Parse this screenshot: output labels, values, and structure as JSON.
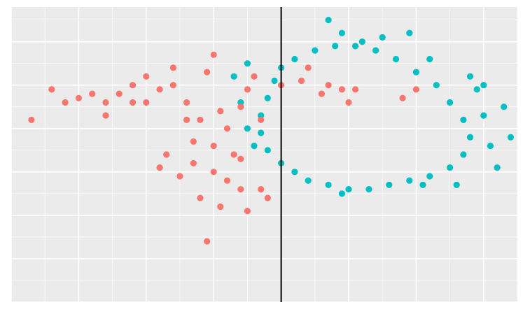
{
  "chart_data": {
    "type": "scatter",
    "title": "",
    "xlabel": "",
    "ylabel": "",
    "xlim": [
      -4.0,
      3.5
    ],
    "ylim": [
      -4.0,
      2.8
    ],
    "grid": true,
    "legend": "none",
    "background": "#ebebeb",
    "grid_color": "#ffffff",
    "vline": {
      "x": 0.0,
      "color": "#000000"
    },
    "series": [
      {
        "color": "#00bfc4",
        "points": [
          [
            0.2,
            1.6
          ],
          [
            0.5,
            1.8
          ],
          [
            0.8,
            1.9
          ],
          [
            1.1,
            1.9
          ],
          [
            1.4,
            1.8
          ],
          [
            1.7,
            1.6
          ],
          [
            2.0,
            1.3
          ],
          [
            2.3,
            1.0
          ],
          [
            2.5,
            0.6
          ],
          [
            2.7,
            0.2
          ],
          [
            2.8,
            -0.2
          ],
          [
            2.7,
            -0.6
          ],
          [
            2.5,
            -0.9
          ],
          [
            2.2,
            -1.1
          ],
          [
            1.9,
            -1.2
          ],
          [
            1.6,
            -1.3
          ],
          [
            1.3,
            -1.4
          ],
          [
            1.0,
            -1.4
          ],
          [
            0.7,
            -1.3
          ],
          [
            0.4,
            -1.2
          ],
          [
            0.2,
            -1.0
          ],
          [
            0.0,
            -0.8
          ],
          [
            -0.2,
            -0.5
          ],
          [
            -0.3,
            -0.1
          ],
          [
            -0.3,
            0.3
          ],
          [
            -0.2,
            0.7
          ],
          [
            -0.1,
            1.1
          ],
          [
            0.0,
            1.4
          ],
          [
            -0.5,
            1.5
          ],
          [
            -0.7,
            1.2
          ],
          [
            -0.6,
            0.6
          ],
          [
            -0.5,
            0.0
          ],
          [
            -0.4,
            -0.4
          ],
          [
            2.9,
            0.9
          ],
          [
            3.1,
            -0.4
          ],
          [
            3.2,
            -0.9
          ],
          [
            3.0,
            0.3
          ],
          [
            2.8,
            1.2
          ],
          [
            1.9,
            2.2
          ],
          [
            0.7,
            2.5
          ],
          [
            0.9,
            2.2
          ],
          [
            1.5,
            2.1
          ],
          [
            2.2,
            1.6
          ],
          [
            3.0,
            1.0
          ],
          [
            2.6,
            -1.3
          ],
          [
            0.9,
            -1.5
          ],
          [
            2.1,
            -1.3
          ],
          [
            3.4,
            -0.2
          ],
          [
            3.3,
            0.5
          ],
          [
            1.2,
            2.0
          ]
        ]
      },
      {
        "color": "#f8766d",
        "points": [
          [
            -3.7,
            0.2
          ],
          [
            -3.4,
            0.9
          ],
          [
            -3.2,
            0.6
          ],
          [
            -3.0,
            0.7
          ],
          [
            -2.8,
            0.8
          ],
          [
            -2.6,
            0.6
          ],
          [
            -2.4,
            0.8
          ],
          [
            -2.2,
            1.0
          ],
          [
            -2.0,
            0.6
          ],
          [
            -1.8,
            0.9
          ],
          [
            -1.6,
            1.0
          ],
          [
            -1.4,
            0.6
          ],
          [
            -1.2,
            0.2
          ],
          [
            -1.0,
            -0.4
          ],
          [
            -0.8,
            0.0
          ],
          [
            -0.6,
            0.5
          ],
          [
            -1.6,
            1.4
          ],
          [
            -1.1,
            1.3
          ],
          [
            -1.0,
            1.7
          ],
          [
            -1.4,
            0.2
          ],
          [
            -1.3,
            -0.8
          ],
          [
            -1.0,
            -1.0
          ],
          [
            -0.8,
            -1.2
          ],
          [
            -0.7,
            -0.6
          ],
          [
            -0.9,
            -1.8
          ],
          [
            -1.2,
            -1.6
          ],
          [
            -1.5,
            -1.1
          ],
          [
            -0.6,
            -1.4
          ],
          [
            -0.3,
            -1.4
          ],
          [
            -0.5,
            -1.9
          ],
          [
            -0.2,
            -1.6
          ],
          [
            -1.1,
            -2.6
          ],
          [
            -1.3,
            -0.3
          ],
          [
            -0.9,
            0.4
          ],
          [
            -0.5,
            0.9
          ],
          [
            -0.4,
            1.2
          ],
          [
            0.0,
            1.0
          ],
          [
            0.3,
            1.1
          ],
          [
            0.6,
            0.8
          ],
          [
            0.4,
            1.4
          ],
          [
            0.7,
            1.0
          ],
          [
            1.0,
            0.6
          ],
          [
            1.1,
            0.9
          ],
          [
            1.8,
            0.7
          ],
          [
            2.0,
            0.9
          ],
          [
            0.9,
            0.9
          ],
          [
            -1.7,
            -0.6
          ],
          [
            -1.8,
            -0.9
          ],
          [
            -0.3,
            0.2
          ],
          [
            -0.6,
            -0.7
          ],
          [
            -2.6,
            0.3
          ],
          [
            -2.2,
            0.6
          ],
          [
            -2.0,
            1.2
          ]
        ]
      }
    ]
  }
}
